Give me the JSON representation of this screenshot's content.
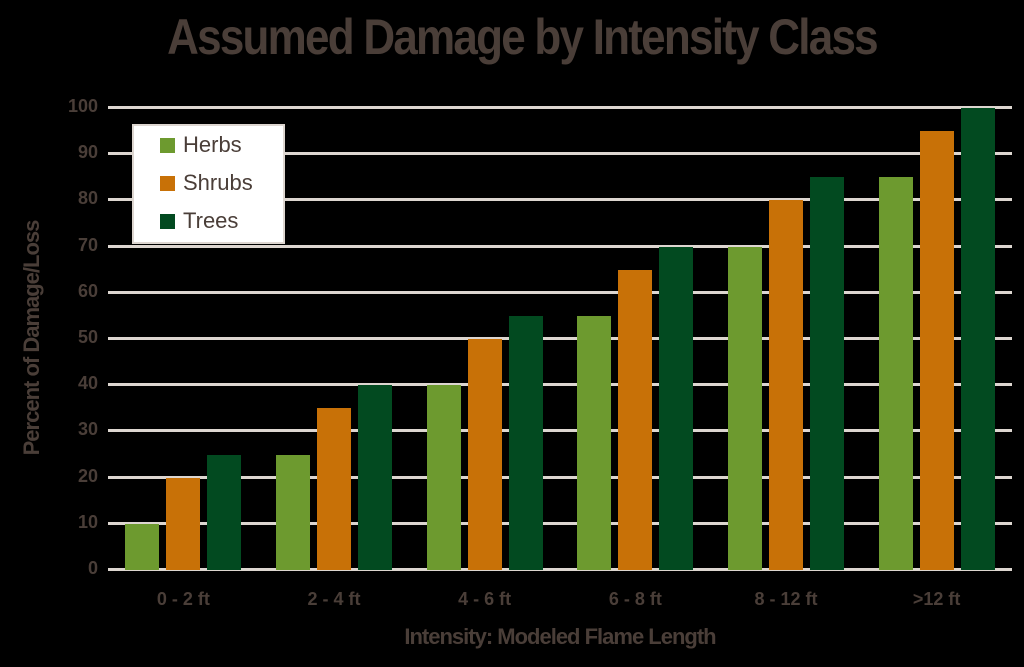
{
  "chart_data": {
    "type": "bar",
    "title": "Assumed Damage by Intensity Class",
    "xlabel": "Intensity: Modeled Flame Length",
    "ylabel": "Percent of Damage/Loss",
    "ylim": [
      0,
      100
    ],
    "yticks": [
      0,
      10,
      20,
      30,
      40,
      50,
      60,
      70,
      80,
      90,
      100
    ],
    "grid": true,
    "legend_position": "upper-left",
    "categories": [
      "0 - 2 ft",
      "2 - 4 ft",
      "4 - 6 ft",
      "6 - 8 ft",
      "8 - 12 ft",
      ">12 ft"
    ],
    "series": [
      {
        "name": "Herbs",
        "color": "#6d9a2f",
        "values": [
          10,
          25,
          40,
          55,
          70,
          85
        ]
      },
      {
        "name": "Shrubs",
        "color": "#c87107",
        "values": [
          20,
          35,
          50,
          65,
          80,
          95
        ]
      },
      {
        "name": "Trees",
        "color": "#024a20",
        "values": [
          25,
          40,
          55,
          70,
          85,
          100
        ]
      }
    ]
  }
}
